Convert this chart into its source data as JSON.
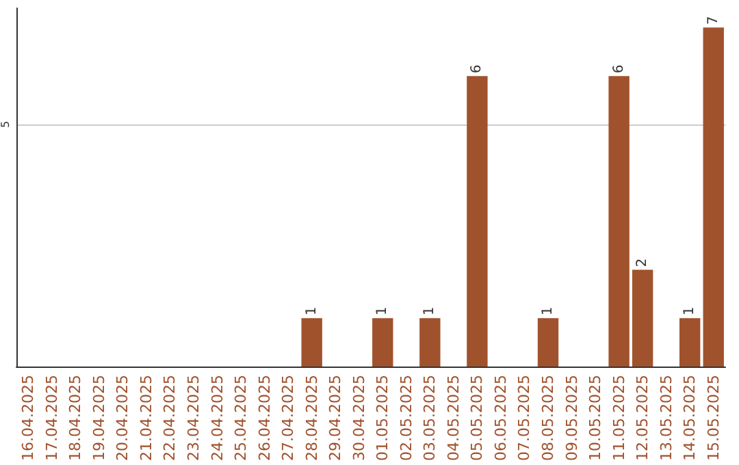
{
  "chart_data": {
    "type": "bar",
    "categories": [
      "16.04.2025",
      "17.04.2025",
      "18.04.2025",
      "19.04.2025",
      "20.04.2025",
      "21.04.2025",
      "22.04.2025",
      "23.04.2025",
      "24.04.2025",
      "25.04.2025",
      "26.04.2025",
      "27.04.2025",
      "28.04.2025",
      "29.04.2025",
      "30.04.2025",
      "01.05.2025",
      "02.05.2025",
      "03.05.2025",
      "04.05.2025",
      "05.05.2025",
      "06.05.2025",
      "07.05.2025",
      "08.05.2025",
      "09.05.2025",
      "10.05.2025",
      "11.05.2025",
      "12.05.2025",
      "13.05.2025",
      "14.05.2025",
      "15.05.2025"
    ],
    "values": [
      null,
      null,
      null,
      null,
      null,
      null,
      null,
      null,
      null,
      null,
      null,
      null,
      1,
      null,
      null,
      1,
      null,
      1,
      null,
      6,
      null,
      null,
      1,
      null,
      null,
      6,
      2,
      null,
      1,
      7
    ],
    "color": "#a0522d",
    "ylim": [
      0,
      7.4
    ],
    "yticks": [
      5
    ],
    "grid": "y",
    "data_labels": true
  }
}
